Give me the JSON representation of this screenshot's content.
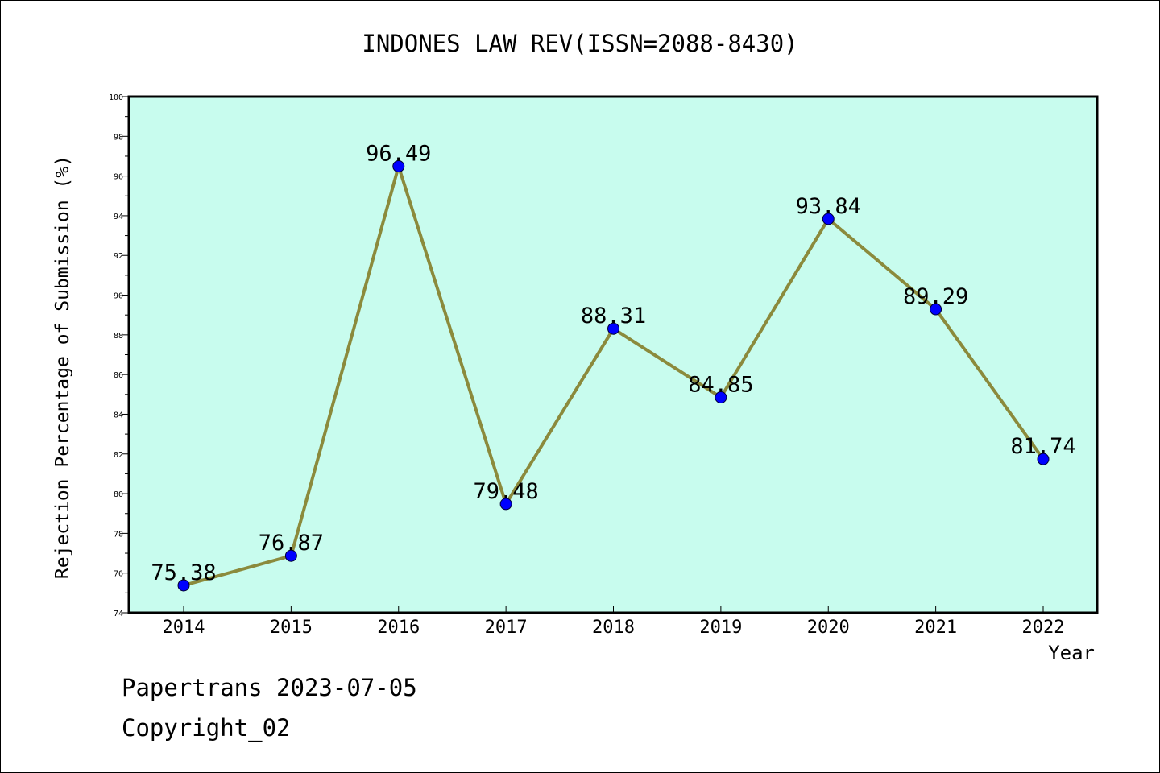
{
  "chart_data": {
    "type": "line",
    "title": "INDONES LAW REV(ISSN=2088-8430)",
    "xlabel": "Year",
    "ylabel": "Rejection Percentage of Submission (%)",
    "categories": [
      "2014",
      "2015",
      "2016",
      "2017",
      "2018",
      "2019",
      "2020",
      "2021",
      "2022"
    ],
    "values": [
      75.38,
      76.87,
      96.49,
      79.48,
      88.31,
      84.85,
      93.84,
      89.29,
      81.74
    ],
    "data_labels": [
      "75.38",
      "76.87",
      "96.49",
      "79.48",
      "88.31",
      "84.85",
      "93.84",
      "89.29",
      "81.74"
    ],
    "ylim": [
      74,
      100
    ],
    "y_ticks": [
      74,
      76,
      78,
      80,
      82,
      84,
      86,
      88,
      90,
      92,
      94,
      96,
      98,
      100
    ],
    "grid": false,
    "legend": "none",
    "colors": {
      "plot_background": "#c8fcee",
      "line": "#8b8a3c",
      "marker": "#0000ff"
    }
  },
  "footer": {
    "date_text": "Papertrans 2023-07-05",
    "copyright_text": "Copyright_02"
  }
}
